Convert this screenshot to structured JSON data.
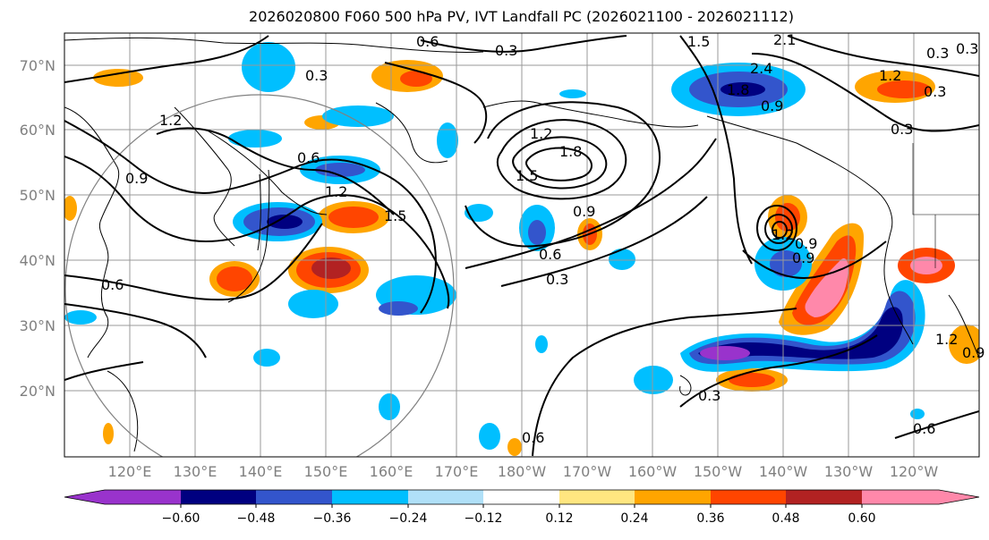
{
  "title": "2026020800 F060 500 hPa PV, IVT Landfall PC (2026021100 - 2026021112)",
  "lat_labels": [
    "70°N",
    "60°N",
    "50°N",
    "40°N",
    "30°N",
    "20°N"
  ],
  "lon_labels": [
    "120°E",
    "130°E",
    "140°E",
    "150°E",
    "160°E",
    "170°E",
    "180°W",
    "170°W",
    "160°W",
    "150°W",
    "140°W",
    "130°W",
    "120°W"
  ],
  "contour_labels": [
    "0.6",
    "0.3",
    "0.3",
    "1.5",
    "2.1",
    "2.4",
    "1.8",
    "0.9",
    "0.3",
    "1.2",
    "0.3",
    "1.2",
    "1.2",
    "1.8",
    "0.6",
    "0.9",
    "1.5",
    "1.2",
    "0.9",
    "1.5",
    "0.9",
    "0.6",
    "0.3",
    "0.6",
    "1.2",
    "0.9",
    "1.2",
    "0.6",
    "0.3",
    "0.6",
    "0.3",
    "0.3",
    "0.9"
  ],
  "colorbar": {
    "tick_labels": [
      "−0.60",
      "−0.48",
      "−0.36",
      "−0.24",
      "−0.12",
      "0.12",
      "0.24",
      "0.36",
      "0.48",
      "0.60"
    ],
    "colors": [
      "#9933cc",
      "#000080",
      "#3355cc",
      "#00bfff",
      "#b0e0f8",
      "#ffffff",
      "#ffe680",
      "#ffa500",
      "#ff4500",
      "#b22222",
      "#ff88aa"
    ]
  },
  "colors": {
    "grid": "#999999",
    "circle": "#808080",
    "coast": "#000000",
    "contour": "#000000"
  }
}
